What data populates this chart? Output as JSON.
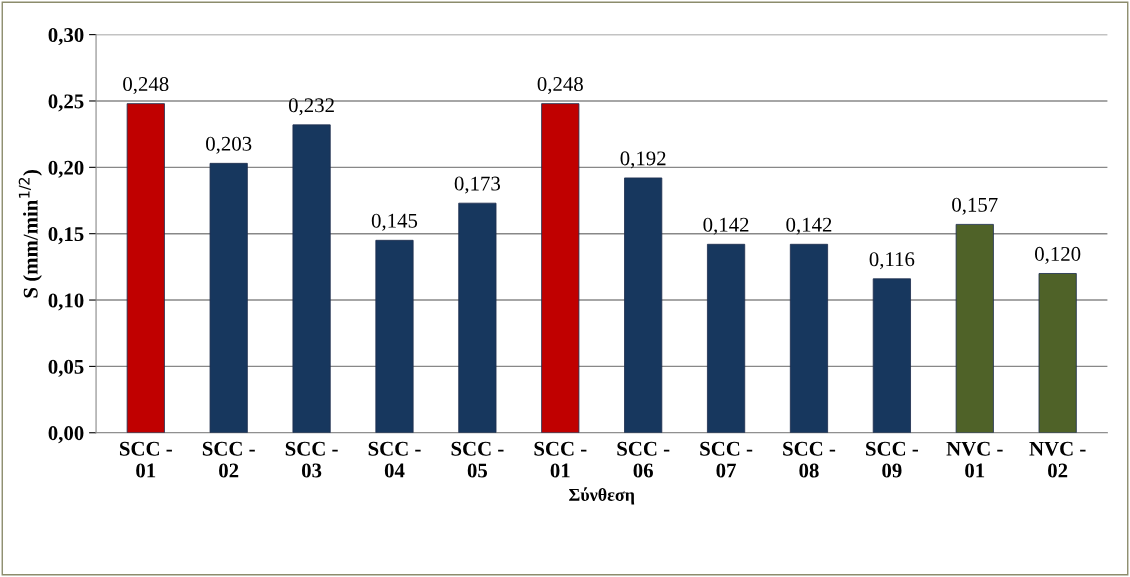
{
  "chart_data": {
    "type": "bar",
    "xlabel": "Σύνθεση",
    "ylabel": "S (mm/min$^{1/2}$)",
    "categories": [
      "SCC -\n01",
      "SCC -\n02",
      "SCC -\n03",
      "SCC -\n04",
      "SCC -\n05",
      "SCC -\n01",
      "SCC -\n06",
      "SCC -\n07",
      "SCC -\n08",
      "SCC -\n09",
      "NVC -\n01",
      "NVC -\n02"
    ],
    "values": [
      0.248,
      0.203,
      0.232,
      0.145,
      0.173,
      0.248,
      0.192,
      0.142,
      0.142,
      0.116,
      0.157,
      0.12
    ],
    "colors": [
      "#c00000",
      "#17375e",
      "#17375e",
      "#17375e",
      "#17375e",
      "#c00000",
      "#17375e",
      "#17375e",
      "#17375e",
      "#17375e",
      "#4f6228",
      "#4f6228"
    ],
    "value_labels": [
      "0,248",
      "0,203",
      "0,232",
      "0,145",
      "0,173",
      "0,248",
      "0,192",
      "0,142",
      "0,142",
      "0,116",
      "0,157",
      "0,120"
    ],
    "ylim": [
      0,
      0.3
    ],
    "yticks": [
      {
        "value": 0,
        "label": "0,00"
      },
      {
        "value": 0.05,
        "label": "0,05"
      },
      {
        "value": 0.1,
        "label": "0,10"
      },
      {
        "value": 0.15,
        "label": "0,15"
      },
      {
        "value": 0.2,
        "label": "0,20"
      },
      {
        "value": 0.25,
        "label": "0,25"
      },
      {
        "value": 0.3,
        "label": "0,30"
      }
    ],
    "grid": "y"
  }
}
